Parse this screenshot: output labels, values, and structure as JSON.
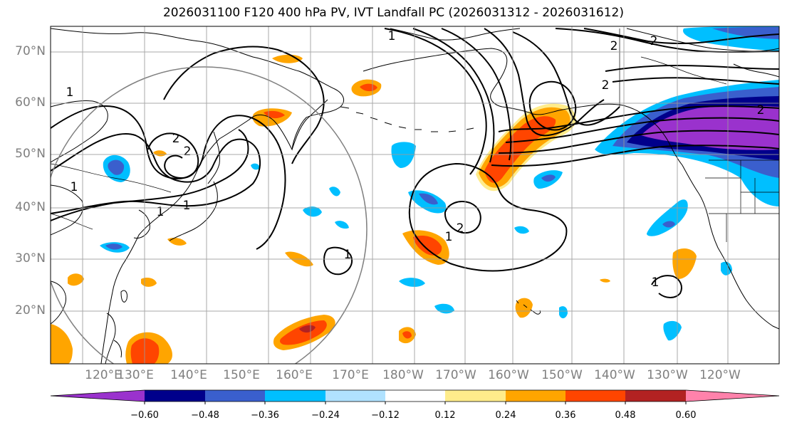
{
  "title": "2026031100 F120 400 hPa PV, IVT Landfall PC (2026031312 - 2026031612)",
  "lat_labels": [
    "70°N",
    "60°N",
    "50°N",
    "40°N",
    "30°N",
    "20°N"
  ],
  "lon_labels": [
    "120°E",
    "130°E",
    "140°E",
    "150°E",
    "160°E",
    "170°E",
    "180°W",
    "170°W",
    "160°W",
    "150°W",
    "140°W",
    "130°W",
    "120°W"
  ],
  "contour_labels": [
    "1",
    "1",
    "1",
    "1",
    "1",
    "1",
    "1",
    "2",
    "2",
    "2",
    "2",
    "2",
    "2",
    "2"
  ],
  "colorbar": {
    "tick_labels": [
      "−0.60",
      "−0.48",
      "−0.36",
      "−0.24",
      "−0.12",
      "0.12",
      "0.24",
      "0.36",
      "0.48",
      "0.60"
    ],
    "colors": [
      "#9a32cd",
      "#00008b",
      "#3a5fcd",
      "#00bfff",
      "#b0e2ff",
      "#ffffff",
      "#ffec8b",
      "#ffa500",
      "#ff4500",
      "#b22222",
      "#ff82ab"
    ],
    "extend": "both"
  },
  "colors": {
    "grid": "#9a9a9a",
    "coast": "#000000",
    "contour": "#000000",
    "circle": "#808080",
    "axis_labels": "#7f7f7f"
  }
}
